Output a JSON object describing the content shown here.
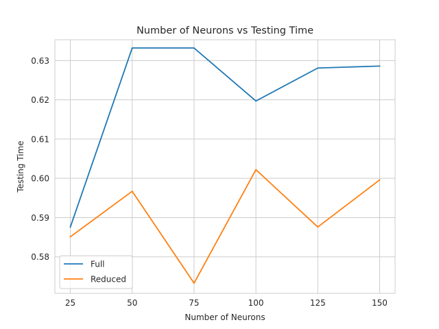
{
  "chart_data": {
    "type": "line",
    "title": "Number of Neurons vs Testing Time",
    "xlabel": "Number of Neurons",
    "ylabel": "Testing Time",
    "x": [
      25,
      50,
      75,
      100,
      125,
      150
    ],
    "xticks": [
      "25",
      "50",
      "75",
      "100",
      "125",
      "150"
    ],
    "yticks": [
      "0.58",
      "0.59",
      "0.60",
      "0.61",
      "0.62",
      "0.63"
    ],
    "ytick_values": [
      0.58,
      0.59,
      0.6,
      0.61,
      0.62,
      0.63
    ],
    "xlim": [
      18.75,
      156.25
    ],
    "ylim": [
      0.5707,
      0.6353
    ],
    "grid": true,
    "legend_position": "lower-left",
    "series": [
      {
        "name": "Full",
        "color": "#1f77b4",
        "values": [
          0.5876,
          0.6332,
          0.6332,
          0.6197,
          0.6281,
          0.6286
        ]
      },
      {
        "name": "Reduced",
        "color": "#ff7f0e",
        "values": [
          0.5851,
          0.5967,
          0.5733,
          0.6022,
          0.5876,
          0.5996
        ]
      }
    ]
  }
}
